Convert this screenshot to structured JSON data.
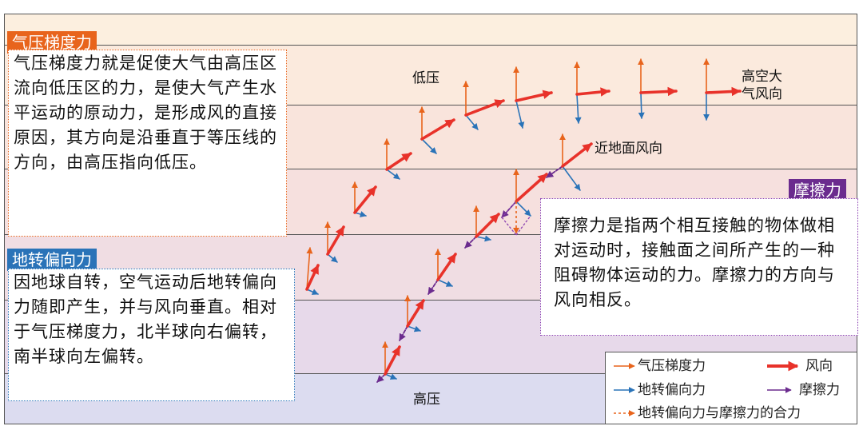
{
  "labels": {
    "low_pressure": "低压",
    "high_pressure": "高压",
    "upper_wind": "高空大\n气风向",
    "surface_wind": "近地面风向"
  },
  "pressure_gradient": {
    "tag": "气压梯度力",
    "text": "气压梯度力就是促使大气由高压区流向低压区的力，是使大气产生水平运动的原动力，是形成风的直接原因，其方向是沿垂直于等压线的方向，由高压指向低压。"
  },
  "coriolis": {
    "tag": "地转偏向力",
    "text": "因地球自转，空气运动后地转偏向力随即产生，并与风向垂直。相对于气压梯度力，北半球向右偏转，南半球向左偏转。"
  },
  "friction": {
    "tag": "摩擦力",
    "text": "摩擦力是指两个相互接触的物体做相对运动时，接触面之间所产生的一种阻碍物体运动的力。摩擦力的方向与风向相反。"
  },
  "legend": {
    "gradient": "气压梯度力",
    "wind": "风向",
    "coriolis": "地转偏向力",
    "friction": "摩擦力",
    "resultant": "地转偏向力与摩擦力的合力"
  },
  "colors": {
    "gradient": "#e8641c",
    "wind": "#e8322a",
    "coriolis": "#2a73b8",
    "friction": "#6b2b8e",
    "band_top": "#fcefdf",
    "band_bottom": "#dcdcf0"
  }
}
